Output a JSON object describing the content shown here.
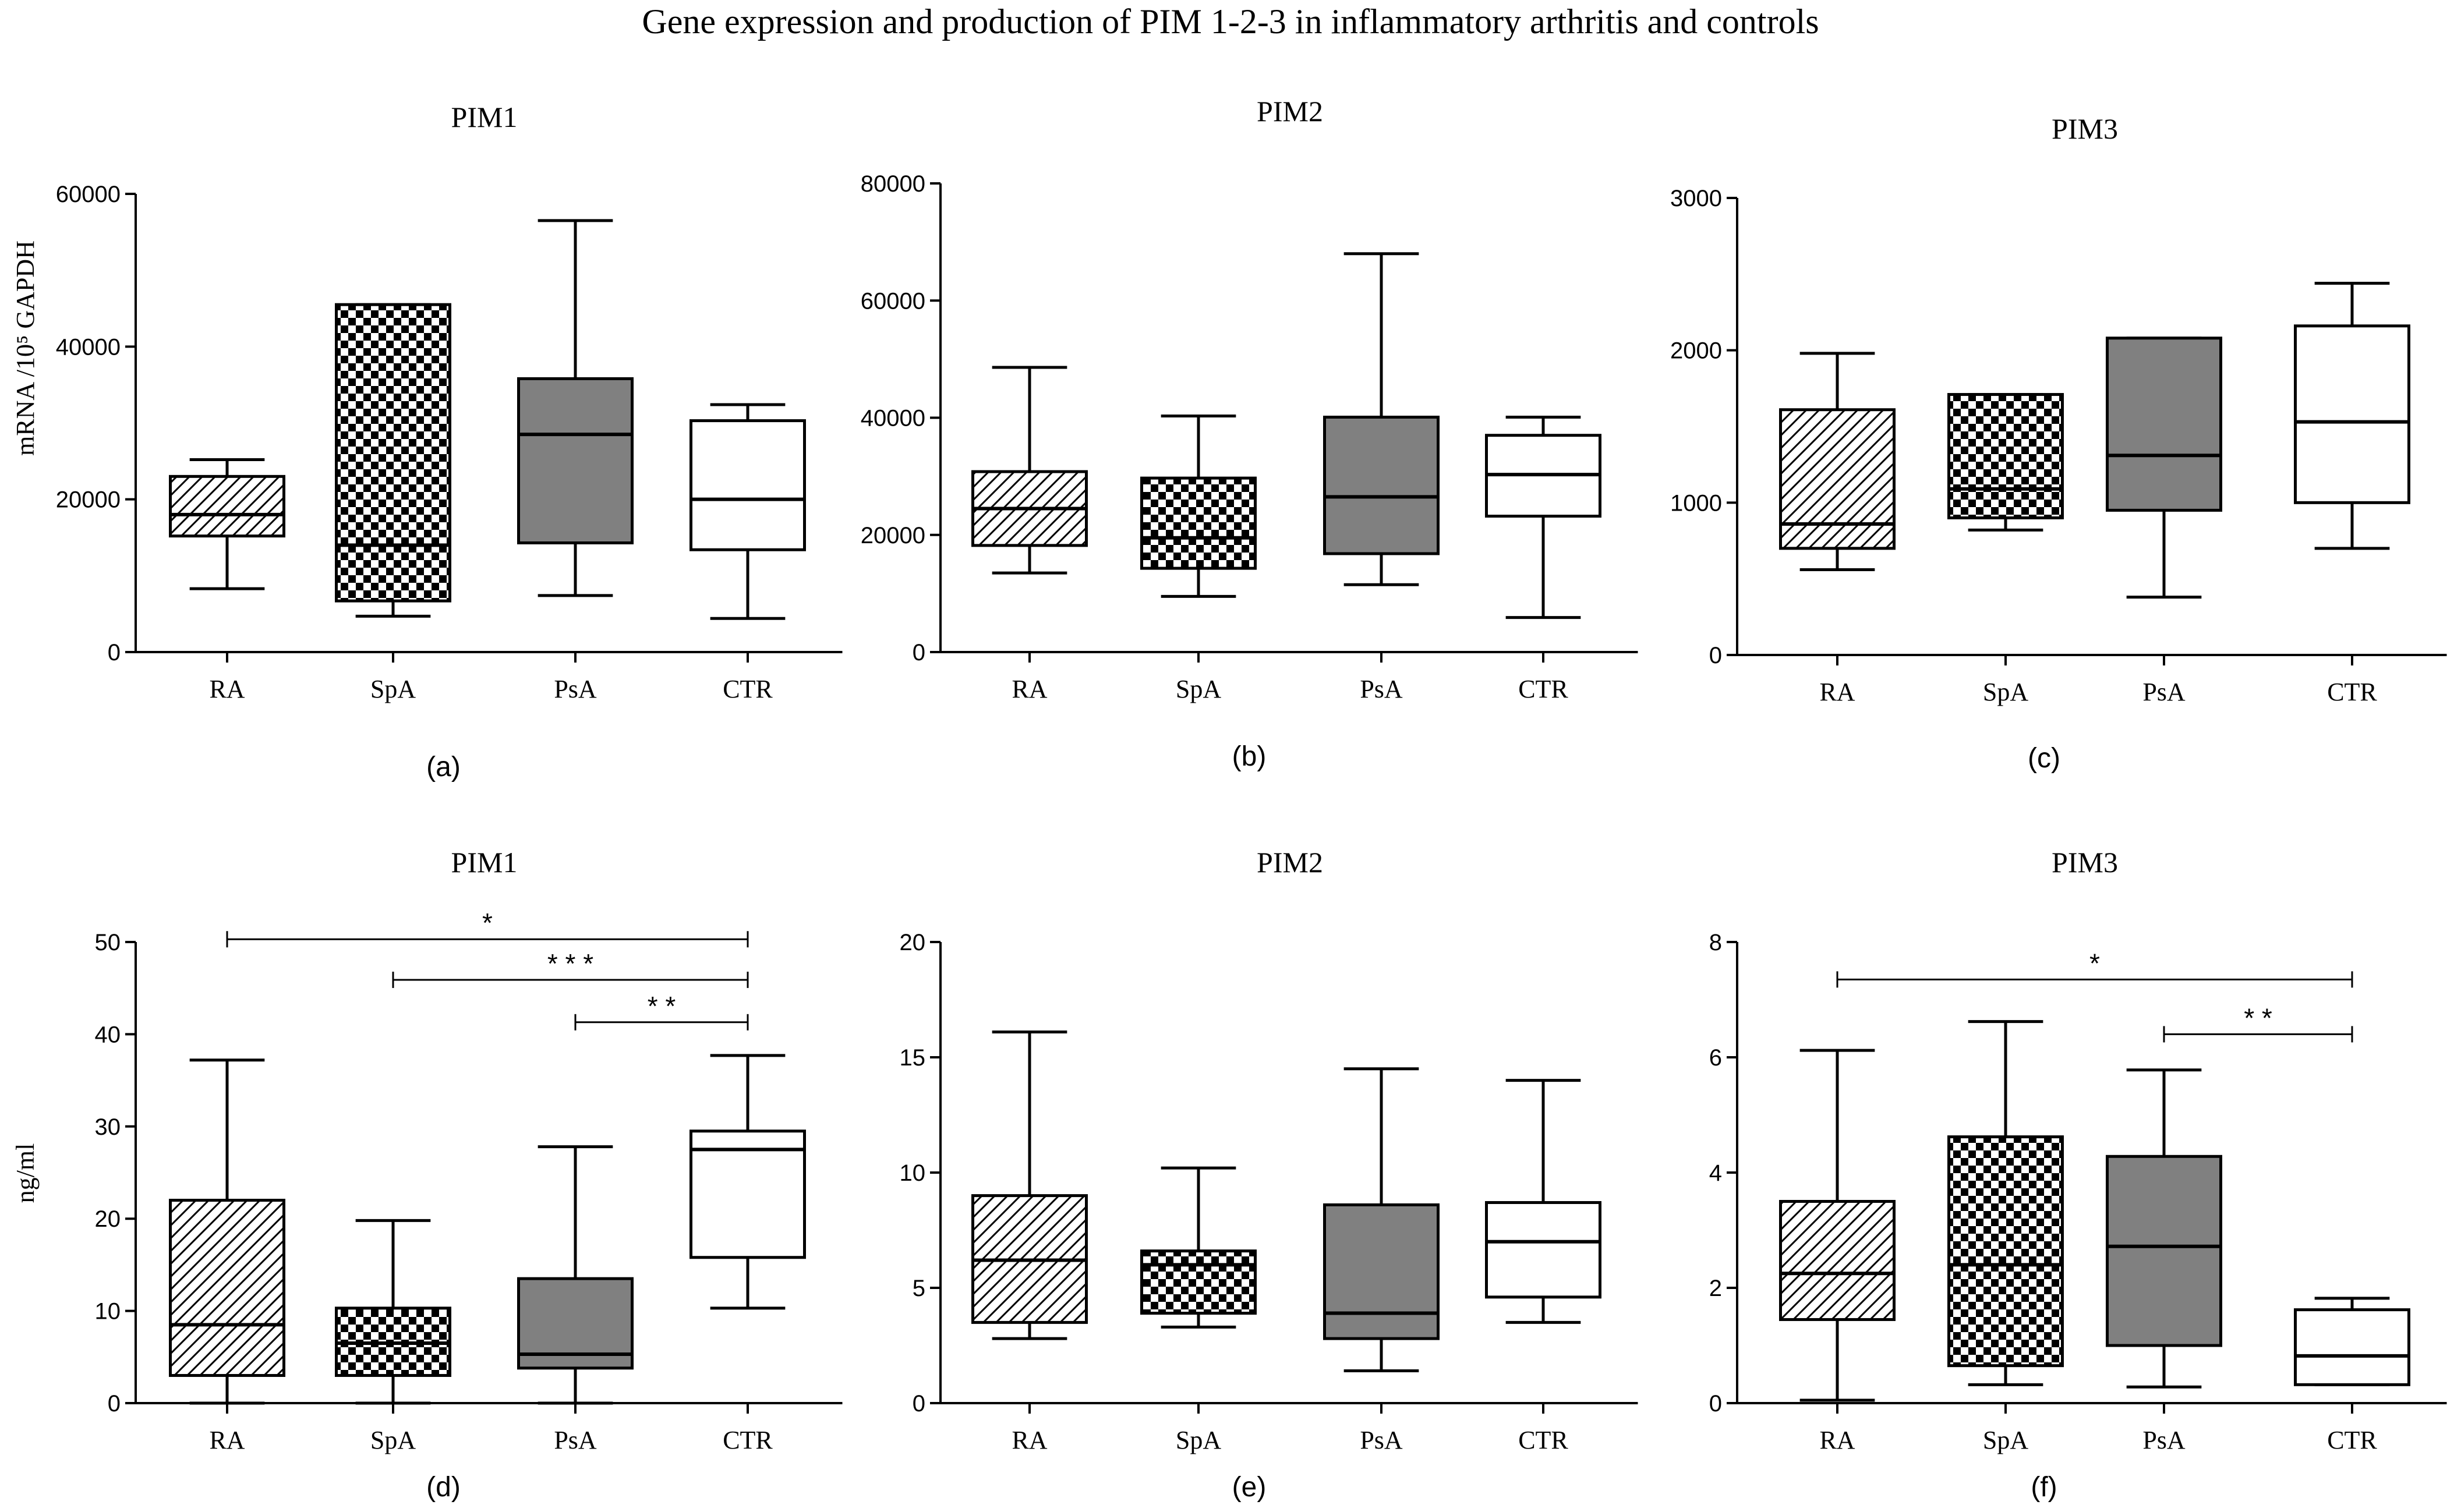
{
  "figure_title": "Gene expression and production of PIM 1-2-3 in  inflammatory arthritis and controls",
  "y_label_top": "mRNA /10⁵ GAPDH",
  "y_label_bottom": "ng/ml",
  "colors": {
    "ink": "#000000",
    "psa_fill": "#808080",
    "ctr_fill": "#ffffff",
    "background": "#ffffff"
  },
  "group_patterns": {
    "RA": "diagonal-hatch",
    "SpA": "checkerboard",
    "PsA": "solid-gray",
    "CTR": "white"
  },
  "chart_data": [
    {
      "type": "box",
      "panel": "(a)",
      "title": "PIM1",
      "ylabel": "mRNA /10⁵ GAPDH",
      "categories": [
        "RA",
        "SpA",
        "PsA",
        "CTR"
      ],
      "ylim": [
        0,
        60000
      ],
      "yticks": [
        0,
        20000,
        40000,
        60000
      ],
      "boxes": [
        {
          "group": "RA",
          "min": 8300,
          "q1": 15200,
          "median": 18000,
          "q3": 23000,
          "max": 25200
        },
        {
          "group": "SpA",
          "min": 4700,
          "q1": 6700,
          "median": 14000,
          "q3": 45500,
          "max": 45500
        },
        {
          "group": "PsA",
          "min": 7400,
          "q1": 14300,
          "median": 28500,
          "q3": 35800,
          "max": 56500
        },
        {
          "group": "CTR",
          "min": 4400,
          "q1": 13400,
          "median": 20000,
          "q3": 30300,
          "max": 32400
        }
      ],
      "significance": []
    },
    {
      "type": "box",
      "panel": "(b)",
      "title": "PIM2",
      "categories": [
        "RA",
        "SpA",
        "PsA",
        "CTR"
      ],
      "ylim": [
        0,
        80000
      ],
      "yticks": [
        0,
        20000,
        40000,
        60000,
        80000
      ],
      "boxes": [
        {
          "group": "RA",
          "min": 13500,
          "q1": 18200,
          "median": 24500,
          "q3": 30800,
          "max": 48600
        },
        {
          "group": "SpA",
          "min": 9500,
          "q1": 14300,
          "median": 19500,
          "q3": 29700,
          "max": 40300
        },
        {
          "group": "PsA",
          "min": 11500,
          "q1": 16800,
          "median": 26500,
          "q3": 40100,
          "max": 68000
        },
        {
          "group": "CTR",
          "min": 5900,
          "q1": 23200,
          "median": 30300,
          "q3": 37000,
          "max": 40100
        }
      ],
      "significance": []
    },
    {
      "type": "box",
      "panel": "(c)",
      "title": "PIM3",
      "categories": [
        "RA",
        "SpA",
        "PsA",
        "CTR"
      ],
      "ylim": [
        0,
        3000
      ],
      "yticks": [
        0,
        1000,
        2000,
        3000
      ],
      "boxes": [
        {
          "group": "RA",
          "min": 560,
          "q1": 700,
          "median": 860,
          "q3": 1610,
          "max": 1980
        },
        {
          "group": "SpA",
          "min": 820,
          "q1": 900,
          "median": 1090,
          "q3": 1710,
          "max": 1710
        },
        {
          "group": "PsA",
          "min": 380,
          "q1": 950,
          "median": 1310,
          "q3": 2080,
          "max": 2080
        },
        {
          "group": "CTR",
          "min": 700,
          "q1": 1000,
          "median": 1530,
          "q3": 2160,
          "max": 2440
        }
      ],
      "significance": []
    },
    {
      "type": "box",
      "panel": "(d)",
      "title": "PIM1",
      "ylabel": "ng/ml",
      "categories": [
        "RA",
        "SpA",
        "PsA",
        "CTR"
      ],
      "ylim": [
        0,
        50
      ],
      "yticks": [
        0,
        10,
        20,
        30,
        40,
        50
      ],
      "boxes": [
        {
          "group": "RA",
          "min": 0,
          "q1": 3.0,
          "median": 8.5,
          "q3": 22.0,
          "max": 37.2
        },
        {
          "group": "SpA",
          "min": 0,
          "q1": 3.0,
          "median": 6.5,
          "q3": 10.3,
          "max": 19.8
        },
        {
          "group": "PsA",
          "min": 0,
          "q1": 3.8,
          "median": 5.3,
          "q3": 13.5,
          "max": 27.8
        },
        {
          "group": "CTR",
          "min": 10.3,
          "q1": 15.8,
          "median": 27.5,
          "q3": 29.5,
          "max": 37.7
        }
      ],
      "significance": [
        {
          "from": "RA",
          "to": "CTR",
          "label": "*",
          "y": 50.3
        },
        {
          "from": "SpA",
          "to": "CTR",
          "label": "* * *",
          "y": 45.9
        },
        {
          "from": "PsA",
          "to": "CTR",
          "label": "* *",
          "y": 41.3
        }
      ]
    },
    {
      "type": "box",
      "panel": "(e)",
      "title": "PIM2",
      "categories": [
        "RA",
        "SpA",
        "PsA",
        "CTR"
      ],
      "ylim": [
        0,
        20
      ],
      "yticks": [
        0,
        5,
        10,
        15,
        20
      ],
      "boxes": [
        {
          "group": "RA",
          "min": 2.8,
          "q1": 3.5,
          "median": 6.2,
          "q3": 9.0,
          "max": 16.1
        },
        {
          "group": "SpA",
          "min": 3.3,
          "q1": 3.9,
          "median": 6.0,
          "q3": 6.6,
          "max": 10.2
        },
        {
          "group": "PsA",
          "min": 1.4,
          "q1": 2.8,
          "median": 3.9,
          "q3": 8.6,
          "max": 14.5
        },
        {
          "group": "CTR",
          "min": 3.5,
          "q1": 4.6,
          "median": 7.0,
          "q3": 8.7,
          "max": 14.0
        }
      ],
      "significance": []
    },
    {
      "type": "box",
      "panel": "(f)",
      "title": "PIM3",
      "categories": [
        "RA",
        "SpA",
        "PsA",
        "CTR"
      ],
      "ylim": [
        0,
        8
      ],
      "yticks": [
        0,
        2,
        4,
        6,
        8
      ],
      "boxes": [
        {
          "group": "RA",
          "min": 0.05,
          "q1": 1.45,
          "median": 2.25,
          "q3": 3.5,
          "max": 6.12
        },
        {
          "group": "SpA",
          "min": 0.32,
          "q1": 0.65,
          "median": 2.4,
          "q3": 4.62,
          "max": 6.62
        },
        {
          "group": "PsA",
          "min": 0.28,
          "q1": 1.0,
          "median": 2.72,
          "q3": 4.28,
          "max": 5.78
        },
        {
          "group": "CTR",
          "min": 0.32,
          "q1": 0.32,
          "median": 0.82,
          "q3": 1.62,
          "max": 1.82
        }
      ],
      "significance": [
        {
          "from": "RA",
          "to": "CTR",
          "label": "*",
          "y": 7.35
        },
        {
          "from": "PsA",
          "to": "CTR",
          "label": "* *",
          "y": 6.4
        }
      ]
    }
  ]
}
